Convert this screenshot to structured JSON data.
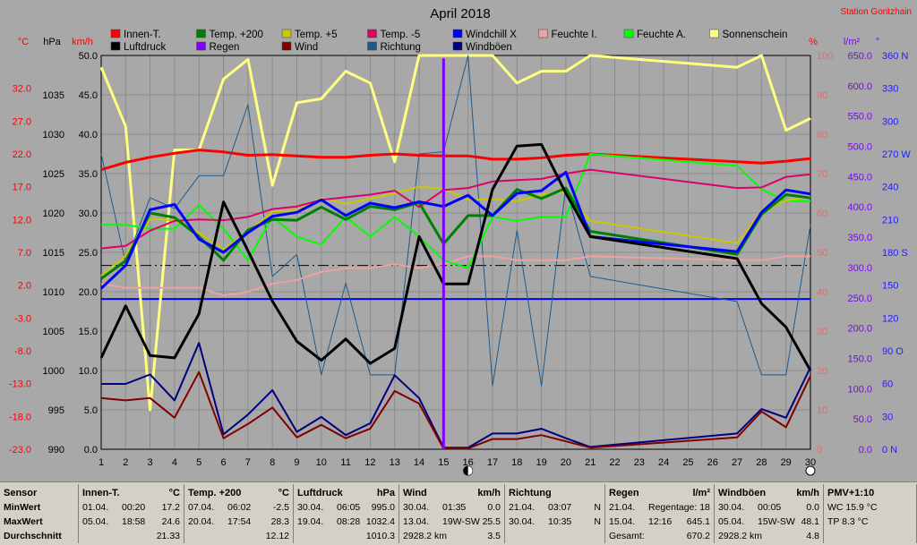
{
  "title": "April 2018",
  "station": "Station Goritzhain",
  "axis_units": {
    "temp": "°C",
    "pressure": "hPa",
    "wind": "km/h",
    "percent": "%",
    "rain": "l/m²",
    "direction": "°"
  },
  "legend": [
    {
      "label": "Innen-T.",
      "color": "#ff0000"
    },
    {
      "label": "Temp. +200",
      "color": "#008000"
    },
    {
      "label": "Temp. +5",
      "color": "#c8c800"
    },
    {
      "label": "Temp. -5",
      "color": "#e0006a"
    },
    {
      "label": "Windchill X",
      "color": "#0000ff"
    },
    {
      "label": "Feuchte I.",
      "color": "#f0a0a0"
    },
    {
      "label": "Feuchte A.",
      "color": "#00ff00"
    },
    {
      "label": "Sonnenschein",
      "color": "#ffff80"
    },
    {
      "label": "Luftdruck",
      "color": "#000000"
    },
    {
      "label": "Regen",
      "color": "#8000ff"
    },
    {
      "label": "Wind",
      "color": "#800000"
    },
    {
      "label": "Richtung",
      "color": "#1e5a8c"
    },
    {
      "label": "Windböen",
      "color": "#000080"
    }
  ],
  "chart_data": {
    "type": "line",
    "title": "April 2018",
    "x": [
      1,
      2,
      3,
      4,
      5,
      6,
      7,
      8,
      9,
      10,
      11,
      12,
      13,
      14,
      15,
      16,
      17,
      18,
      19,
      20,
      21,
      22,
      23,
      24,
      25,
      26,
      27,
      28,
      29,
      30
    ],
    "xlim": [
      1,
      30
    ],
    "axes": {
      "wind": {
        "label": "km/h",
        "ylim": [
          0,
          50
        ],
        "ticks": [
          "0.0",
          "5.0",
          "10.0",
          "15.0",
          "20.0",
          "25.0",
          "30.0",
          "35.0",
          "40.0",
          "45.0",
          "50.0"
        ]
      },
      "temp": {
        "label": "°C",
        "ylim": [
          -23,
          37
        ],
        "ticks": [
          "-23.0",
          "-18.0",
          "-13.0",
          "-8.0",
          "-3.0",
          "2.0",
          "7.0",
          "12.0",
          "17.0",
          "22.0",
          "27.0",
          "32.0"
        ]
      },
      "pressure": {
        "label": "hPa",
        "ylim": [
          990,
          1040
        ],
        "ticks": [
          "990",
          "995",
          "1000",
          "1005",
          "1010",
          "1015",
          "1020",
          "1025",
          "1030",
          "1035"
        ]
      },
      "percent": {
        "label": "%",
        "ylim": [
          0,
          100
        ],
        "ticks": [
          "0",
          "10",
          "20",
          "30",
          "40",
          "50",
          "60",
          "70",
          "80",
          "90",
          "100"
        ]
      },
      "rain": {
        "label": "l/m²",
        "ylim": [
          0,
          650
        ],
        "ticks": [
          "0.0",
          "50.0",
          "100.0",
          "150.0",
          "200.0",
          "250.0",
          "300.0",
          "350.0",
          "400.0",
          "450.0",
          "500.0",
          "550.0",
          "600.0",
          "650.0"
        ]
      },
      "direction": {
        "label": "°",
        "ylim": [
          0,
          360
        ],
        "ticks": [
          "0 N",
          "30",
          "60",
          "90 O",
          "120",
          "150",
          "180 S",
          "210",
          "240",
          "270 W",
          "300",
          "330",
          "360 N"
        ]
      }
    },
    "series": [
      {
        "name": "Sonnenschein",
        "axis": "percent",
        "color": "#ffff80",
        "width": 3,
        "x": [
          1,
          2,
          3,
          4,
          5,
          6,
          7,
          8,
          9,
          10,
          11,
          12,
          13,
          14,
          15,
          16,
          17,
          18,
          19,
          20,
          21,
          27,
          28,
          29,
          30
        ],
        "values": [
          97,
          82,
          10,
          76,
          76,
          94,
          99,
          67,
          88,
          89,
          96,
          93,
          73,
          100,
          100,
          100,
          100,
          93,
          96,
          96,
          100,
          97,
          100,
          81,
          84
        ]
      },
      {
        "name": "Innen-T.",
        "axis": "temp",
        "color": "#ff0000",
        "width": 3,
        "x": [
          1,
          2,
          3,
          4,
          5,
          6,
          7,
          8,
          9,
          10,
          11,
          12,
          13,
          14,
          15,
          16,
          17,
          18,
          19,
          20,
          21,
          27,
          28,
          29,
          30
        ],
        "values": [
          19.6,
          20.7,
          21.5,
          22.1,
          22.6,
          22.3,
          21.8,
          21.9,
          21.7,
          21.5,
          21.5,
          21.8,
          22.0,
          21.8,
          21.7,
          21.7,
          21.2,
          21.2,
          21.4,
          21.8,
          22.0,
          20.8,
          20.6,
          20.9,
          21.3
        ]
      },
      {
        "name": "Richtung",
        "axis": "direction",
        "color": "#1e5a8c",
        "width": 1,
        "x": [
          1,
          2,
          3,
          4,
          5,
          6,
          7,
          8,
          9,
          10,
          11,
          12,
          13,
          14,
          15,
          16,
          17,
          18,
          19,
          20,
          21,
          27,
          28,
          29,
          30
        ],
        "values": [
          270,
          170,
          230,
          220,
          250,
          250,
          315,
          158,
          178,
          68,
          152,
          68,
          68,
          270,
          272,
          360,
          58,
          200,
          58,
          240,
          158,
          135,
          68,
          68,
          205
        ]
      },
      {
        "name": "Feuchte I.",
        "axis": "percent",
        "color": "#f0a0a0",
        "width": 2,
        "x": [
          1,
          2,
          3,
          4,
          5,
          6,
          7,
          8,
          9,
          10,
          11,
          12,
          13,
          14,
          15,
          16,
          17,
          18,
          19,
          20,
          21,
          27,
          28,
          29,
          30
        ],
        "values": [
          42,
          41,
          41,
          41,
          41,
          39,
          40,
          42,
          43,
          45,
          46,
          46,
          47,
          46,
          47,
          49,
          49,
          48,
          48,
          48,
          49,
          48,
          48,
          49,
          49
        ]
      },
      {
        "name": "Feuchte A.",
        "axis": "percent",
        "color": "#00ff00",
        "width": 2,
        "x": [
          1,
          2,
          3,
          4,
          5,
          6,
          7,
          8,
          9,
          10,
          11,
          12,
          13,
          14,
          15,
          16,
          17,
          18,
          19,
          20,
          21,
          27,
          28,
          29,
          30
        ],
        "values": [
          57,
          57,
          56,
          56,
          62,
          56,
          48,
          59,
          54,
          52,
          59,
          54,
          59,
          54,
          48,
          46,
          59,
          58,
          59,
          59,
          75,
          72,
          66,
          63,
          63
        ]
      },
      {
        "name": "Temp. +5",
        "axis": "temp",
        "color": "#c8c800",
        "width": 2,
        "x": [
          1,
          2,
          3,
          4,
          5,
          6,
          7,
          8,
          9,
          10,
          11,
          12,
          13,
          14,
          15,
          16,
          17,
          18,
          19,
          20,
          21,
          27,
          28,
          29,
          30
        ],
        "values": [
          3.4,
          6.5,
          12.1,
          11.9,
          10.0,
          7.5,
          10.1,
          13.2,
          13.4,
          15.3,
          14.4,
          15.2,
          16.0,
          17.0,
          16.7,
          15.0,
          15.1,
          14.8,
          15.8,
          16.2,
          11.8,
          8.4,
          13.2,
          14.9,
          15.5
        ]
      },
      {
        "name": "Temp. -5",
        "axis": "temp",
        "color": "#e0006a",
        "width": 2,
        "x": [
          1,
          2,
          3,
          4,
          5,
          6,
          7,
          8,
          9,
          10,
          11,
          12,
          13,
          14,
          15,
          16,
          17,
          18,
          19,
          20,
          21,
          27,
          28,
          29,
          30
        ],
        "values": [
          7.6,
          8.0,
          10.3,
          11.8,
          12.0,
          11.9,
          12.4,
          13.6,
          14.0,
          15.0,
          15.4,
          15.8,
          16.4,
          13.9,
          16.5,
          16.8,
          17.8,
          18.0,
          18.2,
          19.0,
          19.6,
          16.8,
          16.9,
          18.5,
          18.9
        ]
      },
      {
        "name": "Temp. +200",
        "axis": "temp",
        "color": "#008000",
        "width": 3,
        "x": [
          1,
          2,
          3,
          4,
          5,
          6,
          7,
          8,
          9,
          10,
          11,
          12,
          13,
          14,
          15,
          16,
          17,
          18,
          19,
          20,
          21,
          27,
          28,
          29,
          30
        ],
        "values": [
          3.0,
          5.7,
          13.0,
          12.3,
          9.4,
          5.8,
          10.4,
          12.0,
          11.9,
          13.9,
          12.0,
          14.0,
          13.5,
          14.6,
          8.3,
          12.6,
          12.6,
          16.6,
          15.2,
          16.8,
          10.2,
          6.7,
          12.8,
          15.8,
          15.3
        ]
      },
      {
        "name": "Windchill X",
        "axis": "temp",
        "color": "#0000ff",
        "width": 3,
        "x": [
          1,
          2,
          3,
          4,
          5,
          6,
          7,
          8,
          9,
          10,
          11,
          12,
          13,
          14,
          15,
          16,
          17,
          18,
          19,
          20,
          21,
          27,
          28,
          29,
          30
        ],
        "values": [
          1.5,
          5.0,
          13.5,
          14.3,
          9.0,
          7.0,
          10.0,
          12.5,
          13.1,
          15.0,
          12.6,
          14.5,
          13.8,
          14.7,
          14.0,
          15.7,
          12.6,
          16.0,
          16.4,
          19.2,
          9.4,
          7.1,
          13.1,
          16.5,
          15.9
        ]
      },
      {
        "name": "Luftdruck",
        "axis": "pressure",
        "color": "#000000",
        "width": 3,
        "x": [
          1,
          2,
          3,
          4,
          5,
          6,
          7,
          8,
          9,
          10,
          11,
          12,
          13,
          14,
          15,
          16,
          17,
          18,
          19,
          20,
          21,
          27,
          28,
          29,
          30
        ],
        "values": [
          1001.6,
          1008.2,
          1001.9,
          1001.6,
          1007.2,
          1021.4,
          1015.2,
          1008.8,
          1003.7,
          1001.3,
          1004.0,
          1000.9,
          1002.8,
          1017.0,
          1011.0,
          1011.0,
          1023.0,
          1028.5,
          1028.7,
          1022.5,
          1017.0,
          1014.2,
          1008.5,
          1005.5,
          1000.0
        ]
      },
      {
        "name": "Windböen",
        "axis": "wind",
        "color": "#000080",
        "width": 2,
        "x": [
          1,
          2,
          3,
          4,
          5,
          6,
          7,
          8,
          9,
          10,
          11,
          12,
          13,
          14,
          15,
          16,
          17,
          18,
          19,
          20,
          21,
          27,
          28,
          29,
          30
        ],
        "values": [
          8.3,
          8.3,
          9.5,
          6.2,
          13.5,
          1.9,
          4.4,
          7.5,
          2.2,
          4.1,
          1.8,
          3.3,
          9.4,
          6.5,
          0.2,
          0.2,
          2.0,
          2.0,
          2.6,
          1.4,
          0.3,
          2.0,
          5.1,
          4.0,
          10.4
        ]
      },
      {
        "name": "Wind",
        "axis": "wind",
        "color": "#800000",
        "width": 2,
        "x": [
          1,
          2,
          3,
          4,
          5,
          6,
          7,
          8,
          9,
          10,
          11,
          12,
          13,
          14,
          15,
          16,
          17,
          18,
          19,
          20,
          21,
          27,
          28,
          29,
          30
        ],
        "values": [
          6.5,
          6.2,
          6.5,
          4.0,
          9.8,
          1.4,
          3.2,
          5.3,
          1.5,
          3.1,
          1.4,
          2.6,
          7.4,
          5.8,
          0.1,
          0.1,
          1.3,
          1.3,
          1.8,
          1.0,
          0.2,
          1.5,
          4.8,
          2.8,
          9.3
        ]
      }
    ],
    "flat_lines": [
      {
        "name": "Temp. +200",
        "axis": "temp",
        "value": 5.0,
        "style": "dash-dot",
        "color": "#000000"
      },
      {
        "name": "Windchill X",
        "axis": "temp",
        "value": -0.1,
        "style": "solid",
        "color": "#0000ff"
      }
    ],
    "rain": {
      "name": "Regen",
      "axis": "rain",
      "color": "#8000ff",
      "x": [
        15
      ],
      "values": [
        645.1
      ]
    },
    "moon_markers": [
      {
        "day": 16,
        "phase": "new"
      },
      {
        "day": 30,
        "phase": "full"
      }
    ]
  },
  "stats": [
    {
      "header": "Sensor",
      "min": "MinWert",
      "max": "MaxWert",
      "avg": "Durchschnitt"
    },
    {
      "header": "Innen-T.",
      "unit": "°C",
      "min_date": "01.04.",
      "min_time": "00:20",
      "min_val": "17.2",
      "max_date": "05.04.",
      "max_time": "18:58",
      "max_val": "24.6",
      "avg": "21.33"
    },
    {
      "header": "Temp. +200",
      "unit": "°C",
      "min_date": "07.04.",
      "min_time": "06:02",
      "min_val": "-2.5",
      "max_date": "20.04.",
      "max_time": "17:54",
      "max_val": "28.3",
      "avg": "12.12"
    },
    {
      "header": "Luftdruck",
      "unit": "hPa",
      "min_date": "30.04.",
      "min_time": "06:05",
      "min_val": "995.0",
      "max_date": "19.04.",
      "max_time": "08:28",
      "max_val": "1032.4",
      "avg": "1010.3"
    },
    {
      "header": "Wind",
      "unit": "km/h",
      "min_date": "30.04.",
      "min_time": "01:35",
      "min_val": "0.0",
      "max_date": "13.04.",
      "max_time": "19W-SW",
      "max_val": "25.5",
      "avg_label": "2928.2 km",
      "avg": "3.5"
    },
    {
      "header": "Richtung",
      "unit": "",
      "min_date": "21.04.",
      "min_time": "03:07",
      "min_val": "N",
      "max_date": "30.04.",
      "max_time": "10:35",
      "max_val": "N",
      "avg": ""
    },
    {
      "header": "Regen",
      "unit": "l/m²",
      "min_date": "21.04.",
      "min_time": "Regentage: 18",
      "min_val": "",
      "max_date": "15.04.",
      "max_time": "12:16",
      "max_val": "645.1",
      "avg_label": "Gesamt:",
      "avg": "670.2"
    },
    {
      "header": "Windböen",
      "unit": "km/h",
      "min_date": "30.04.",
      "min_time": "00:05",
      "min_val": "0.0",
      "max_date": "05.04.",
      "max_time": "15W-SW",
      "max_val": "48.1",
      "avg_label": "2928.2 km",
      "avg": "4.8"
    },
    {
      "header": "PMV+1:10",
      "line1": "WC 15.9 °C",
      "line2": "TP 8.3 °C"
    }
  ]
}
